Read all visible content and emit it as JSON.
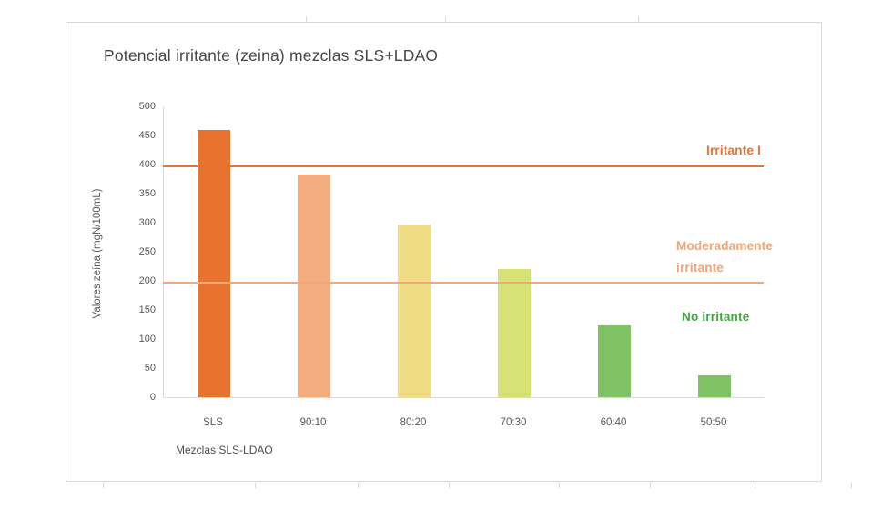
{
  "chart_data": {
    "type": "bar",
    "title": "Potencial irritante (zeina) mezclas SLS+LDAO",
    "xlabel": "Mezclas SLS-LDAO",
    "ylabel": "Valores zeína (mgN/100mL)",
    "categories": [
      "SLS",
      "90:10",
      "80:20",
      "70:30",
      "60:40",
      "50:50"
    ],
    "values": [
      460,
      383,
      297,
      220,
      124,
      38
    ],
    "bar_colors": [
      "#E8732E",
      "#F2AC7E",
      "#F0DC82",
      "#D6E274",
      "#7FC364",
      "#7FC364"
    ],
    "ylim": [
      0,
      500
    ],
    "ytick_step": 50,
    "grid": false,
    "legend": false,
    "reference_lines": [
      {
        "value": 400,
        "color": "#E8732E",
        "style": "thick"
      },
      {
        "value": 200,
        "color": "#F2A878",
        "style": "thin"
      }
    ],
    "annotations": {
      "irritante_i": {
        "text": "Irritante I",
        "color": "#E8732E"
      },
      "moderadamente": {
        "text": "Moderadamente irritante",
        "color": "#F0A478"
      },
      "no_irritante": {
        "text": "No irritante",
        "color": "#43A643"
      }
    }
  }
}
